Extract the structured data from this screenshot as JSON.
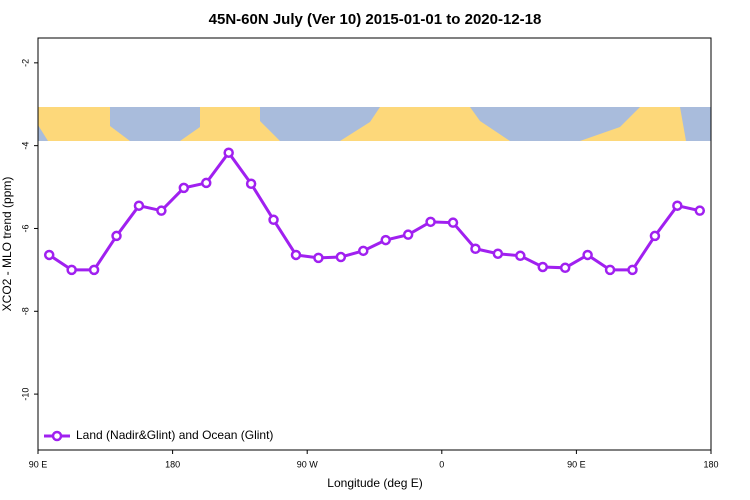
{
  "chart_data": {
    "type": "line",
    "title": "45N-60N July (Ver 10)   2015-01-01 to 2020-12-18",
    "x_label": "Longitude (deg E)",
    "y_label": "XCO2 - MLO trend (ppm)",
    "x": [
      97.5,
      112.5,
      127.5,
      142.5,
      157.5,
      172.5,
      187.5,
      202.5,
      217.5,
      232.5,
      247.5,
      262.5,
      277.5,
      292.5,
      307.5,
      322.5,
      337.5,
      352.5,
      367.5,
      382.5,
      397.5,
      412.5,
      427.5,
      442.5,
      457.5,
      472.5,
      487.5,
      502.5,
      517.5,
      532.5
    ],
    "series": [
      {
        "name": "Land (Nadir&Glint) and Ocean (Glint)",
        "color": "#a020f0",
        "values": [
          -6.64,
          -7.0,
          -7.0,
          -6.18,
          -5.45,
          -5.57,
          -5.02,
          -4.9,
          -4.17,
          -4.92,
          -5.79,
          -6.64,
          -6.71,
          -6.69,
          -6.54,
          -6.28,
          -6.15,
          -5.84,
          -5.86,
          -6.49,
          -6.61,
          -6.66,
          -6.93,
          -6.95,
          -6.64,
          -7.0,
          -7.0,
          -6.18,
          -5.45,
          -5.57
        ]
      }
    ],
    "xlim": [
      90,
      540
    ],
    "xticks": [
      {
        "value": 90,
        "label": "90 E"
      },
      {
        "value": 180,
        "label": "180"
      },
      {
        "value": 270,
        "label": "90 W"
      },
      {
        "value": 360,
        "label": "0"
      },
      {
        "value": 450,
        "label": "90 E"
      },
      {
        "value": 540,
        "label": "180"
      }
    ],
    "ylim": [
      -11.35,
      -1.4
    ],
    "yticks": [
      -2,
      -4,
      -6,
      -8,
      -10
    ],
    "legend": "bottom-left"
  }
}
